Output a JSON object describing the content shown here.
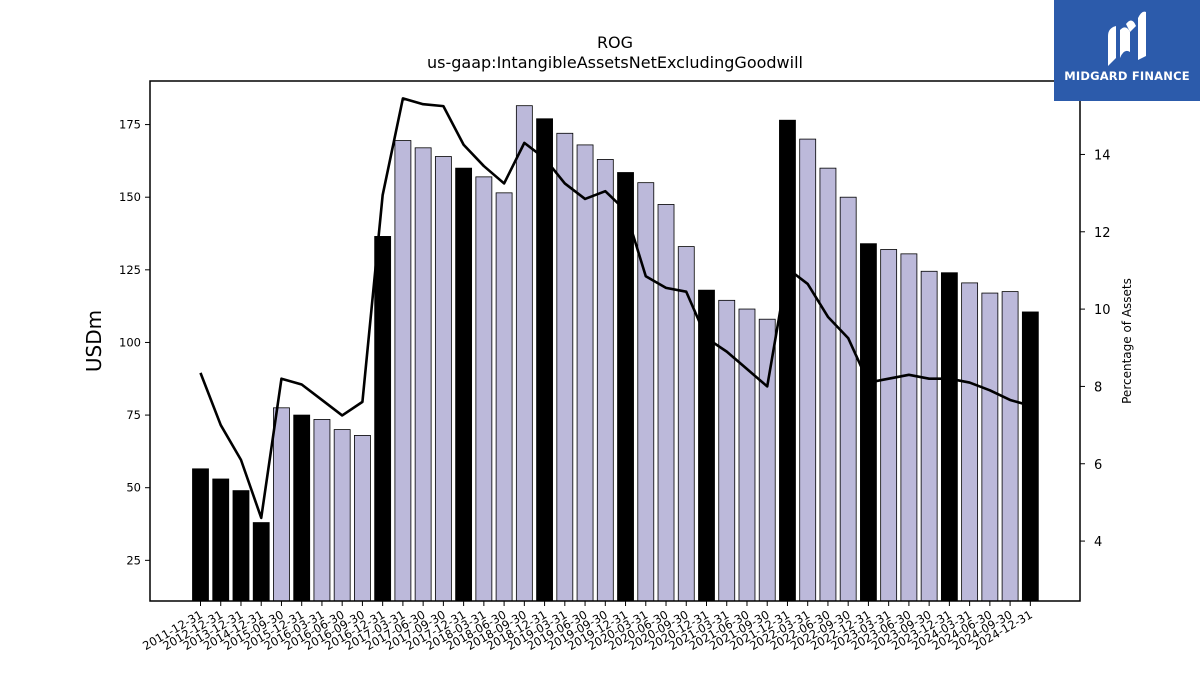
{
  "brand": {
    "name": "MIDGARD FINANCE",
    "bg_color": "#2c5bab"
  },
  "chart_data": {
    "type": "bar",
    "title": "ROG",
    "subtitle": "us-gaap:IntangibleAssetsNetExcludingGoodwill",
    "ylabel": "USDm",
    "ylabel_right": "Percentage of Assets",
    "ylim": [
      11,
      190
    ],
    "ylim_right": [
      2.45,
      15.9
    ],
    "yticks": [
      25,
      50,
      75,
      100,
      125,
      150,
      175
    ],
    "yticks_right": [
      4,
      6,
      8,
      10,
      12,
      14
    ],
    "colors": {
      "annual": "#000000",
      "quarter": "#bcb9da",
      "line": "#000000"
    },
    "categories": [
      "2011-12-31",
      "2012-12-31",
      "2013-12-31",
      "2014-12-31",
      "2015-09-30",
      "2015-12-31",
      "2016-03-31",
      "2016-06-30",
      "2016-09-30",
      "2016-12-31",
      "2017-03-31",
      "2017-06-30",
      "2017-09-30",
      "2017-12-31",
      "2018-03-31",
      "2018-06-30",
      "2018-09-30",
      "2018-12-31",
      "2019-03-31",
      "2019-06-30",
      "2019-09-30",
      "2019-12-31",
      "2020-03-31",
      "2020-06-30",
      "2020-09-30",
      "2020-12-31",
      "2021-03-31",
      "2021-06-30",
      "2021-09-30",
      "2021-12-31",
      "2022-03-31",
      "2022-06-30",
      "2022-09-30",
      "2022-12-31",
      "2023-03-31",
      "2023-06-30",
      "2023-09-30",
      "2023-12-31",
      "2024-03-31",
      "2024-06-30",
      "2024-09-30",
      "2024-12-31"
    ],
    "series": [
      {
        "type": "bar",
        "values": [
          56.5,
          53,
          49,
          38,
          77.5,
          75,
          73.5,
          70,
          68,
          136.5,
          169.5,
          167,
          164,
          160,
          157,
          151.5,
          181.5,
          177,
          172,
          168,
          163,
          158.5,
          155,
          147.5,
          133,
          118,
          114.5,
          111.5,
          108,
          176.5,
          170,
          160,
          150,
          134,
          132,
          130.5,
          124.5,
          124,
          120.5,
          117,
          117.5,
          110.5
        ],
        "annual": [
          true,
          true,
          true,
          true,
          false,
          true,
          false,
          false,
          false,
          true,
          false,
          false,
          false,
          true,
          false,
          false,
          false,
          true,
          false,
          false,
          false,
          true,
          false,
          false,
          false,
          true,
          false,
          false,
          false,
          true,
          false,
          false,
          false,
          true,
          false,
          false,
          false,
          true,
          false,
          false,
          false,
          true
        ]
      },
      {
        "type": "line",
        "axis": "right",
        "values": [
          8.35,
          7.0,
          6.1,
          4.6,
          8.2,
          8.05,
          7.65,
          7.25,
          7.6,
          12.95,
          15.45,
          15.3,
          15.25,
          14.25,
          13.7,
          13.25,
          14.3,
          13.9,
          13.25,
          12.85,
          13.05,
          12.55,
          10.85,
          10.55,
          10.45,
          9.25,
          8.9,
          8.45,
          8.0,
          11.05,
          10.65,
          9.8,
          9.25,
          8.1,
          8.2,
          8.3,
          8.2,
          8.2,
          8.1,
          7.9,
          7.65,
          7.5
        ]
      }
    ]
  }
}
